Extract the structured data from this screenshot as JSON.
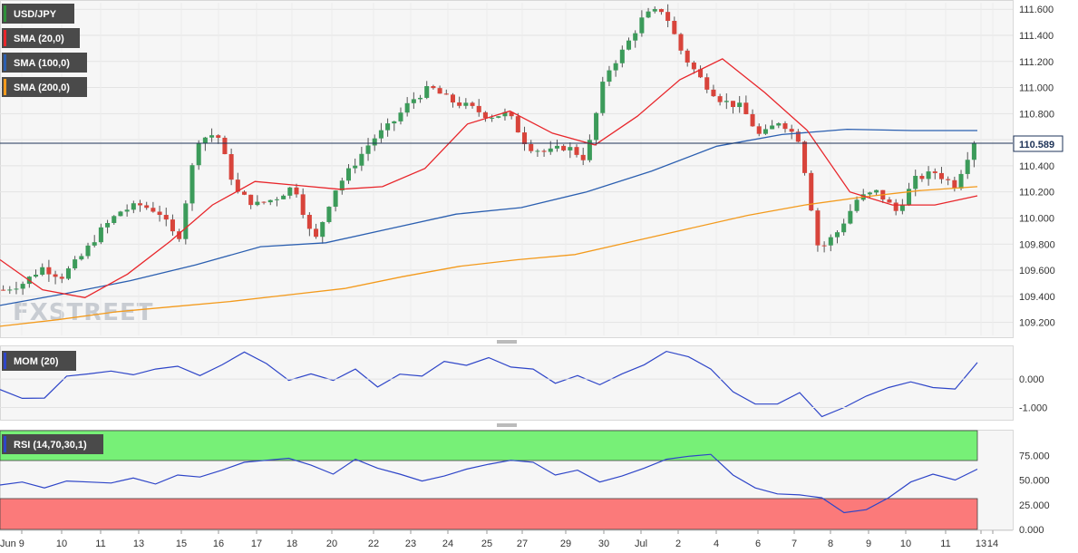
{
  "chart_data": [
    {
      "type": "candlestick",
      "instrument": "USD/JPY",
      "legend": [
        "USD/JPY",
        "SMA (20,0)",
        "SMA (100,0)",
        "SMA (200,0)"
      ],
      "colors": {
        "up": "#3c9b5a",
        "down": "#d8443b",
        "sma20": "#e8262b",
        "sma100": "#2b5fb0",
        "sma200": "#f39a1c",
        "current": "#1e3358"
      },
      "ylim": [
        109.1,
        111.65
      ],
      "yticks": [
        "109.200",
        "109.400",
        "109.600",
        "109.800",
        "110.000",
        "110.200",
        "110.400",
        "110.600",
        "110.800",
        "111.000",
        "111.200",
        "111.400",
        "111.600"
      ],
      "current_price": "110.589",
      "x_labels": [
        "Jun 9",
        "10",
        "11",
        "13",
        "15",
        "16",
        "17",
        "18",
        "20",
        "22",
        "23",
        "24",
        "25",
        "27",
        "29",
        "30",
        "Jul",
        "2",
        "4",
        "6",
        "7",
        "8",
        "9",
        "10",
        "11",
        "13",
        "14"
      ],
      "sma20_anchor_values": [
        109.68,
        109.45,
        109.39,
        109.57,
        109.82,
        110.1,
        110.28,
        110.25,
        110.22,
        110.24,
        110.38,
        110.72,
        110.82,
        110.65,
        110.56,
        110.78,
        111.06,
        111.22,
        110.96,
        110.67,
        110.2,
        110.1,
        110.1,
        110.17
      ],
      "sma100_anchor_values": [
        109.33,
        109.42,
        109.52,
        109.64,
        109.78,
        109.81,
        109.92,
        110.03,
        110.08,
        110.2,
        110.36,
        110.55,
        110.64,
        110.68,
        110.67,
        110.67
      ]
    },
    {
      "type": "line",
      "title": "MOM (20)",
      "yticks": [
        "0.000",
        "-1.000"
      ],
      "ylim": [
        -1.4,
        1.15
      ],
      "y": [
        -0.37,
        -0.68,
        -0.67,
        0.1,
        0.18,
        0.28,
        0.15,
        0.35,
        0.45,
        0.12,
        0.5,
        0.95,
        0.54,
        -0.05,
        0.18,
        -0.05,
        0.35,
        -0.28,
        0.17,
        0.1,
        0.62,
        0.48,
        0.75,
        0.42,
        0.35,
        -0.15,
        0.12,
        -0.2,
        0.18,
        0.5,
        0.97,
        0.78,
        0.35,
        -0.45,
        -0.88,
        -0.88,
        -0.48,
        -1.32,
        -1.0,
        -0.6,
        -0.3,
        -0.1,
        -0.3,
        -0.35,
        0.58
      ],
      "color": "#2e45c8"
    },
    {
      "type": "line",
      "title": "RSI (14,70,30,1)",
      "yticks": [
        "75.000",
        "50.000",
        "25.000",
        "0.000"
      ],
      "ylim": [
        0,
        100
      ],
      "zones": [
        {
          "from": 70,
          "to": 100,
          "color": "#77f077"
        },
        {
          "from": 0,
          "to": 30,
          "color": "#fb7a7a"
        }
      ],
      "y": [
        45,
        48,
        42,
        49,
        48,
        47,
        52,
        46,
        55,
        53,
        60,
        68,
        70,
        72,
        65,
        56,
        71,
        62,
        56,
        49,
        54,
        61,
        66,
        70,
        68,
        55,
        60,
        48,
        54,
        62,
        71,
        74,
        76,
        55,
        42,
        36,
        35,
        32,
        17,
        20,
        32,
        48,
        56,
        50,
        61
      ],
      "color": "#2e45c8"
    }
  ]
}
